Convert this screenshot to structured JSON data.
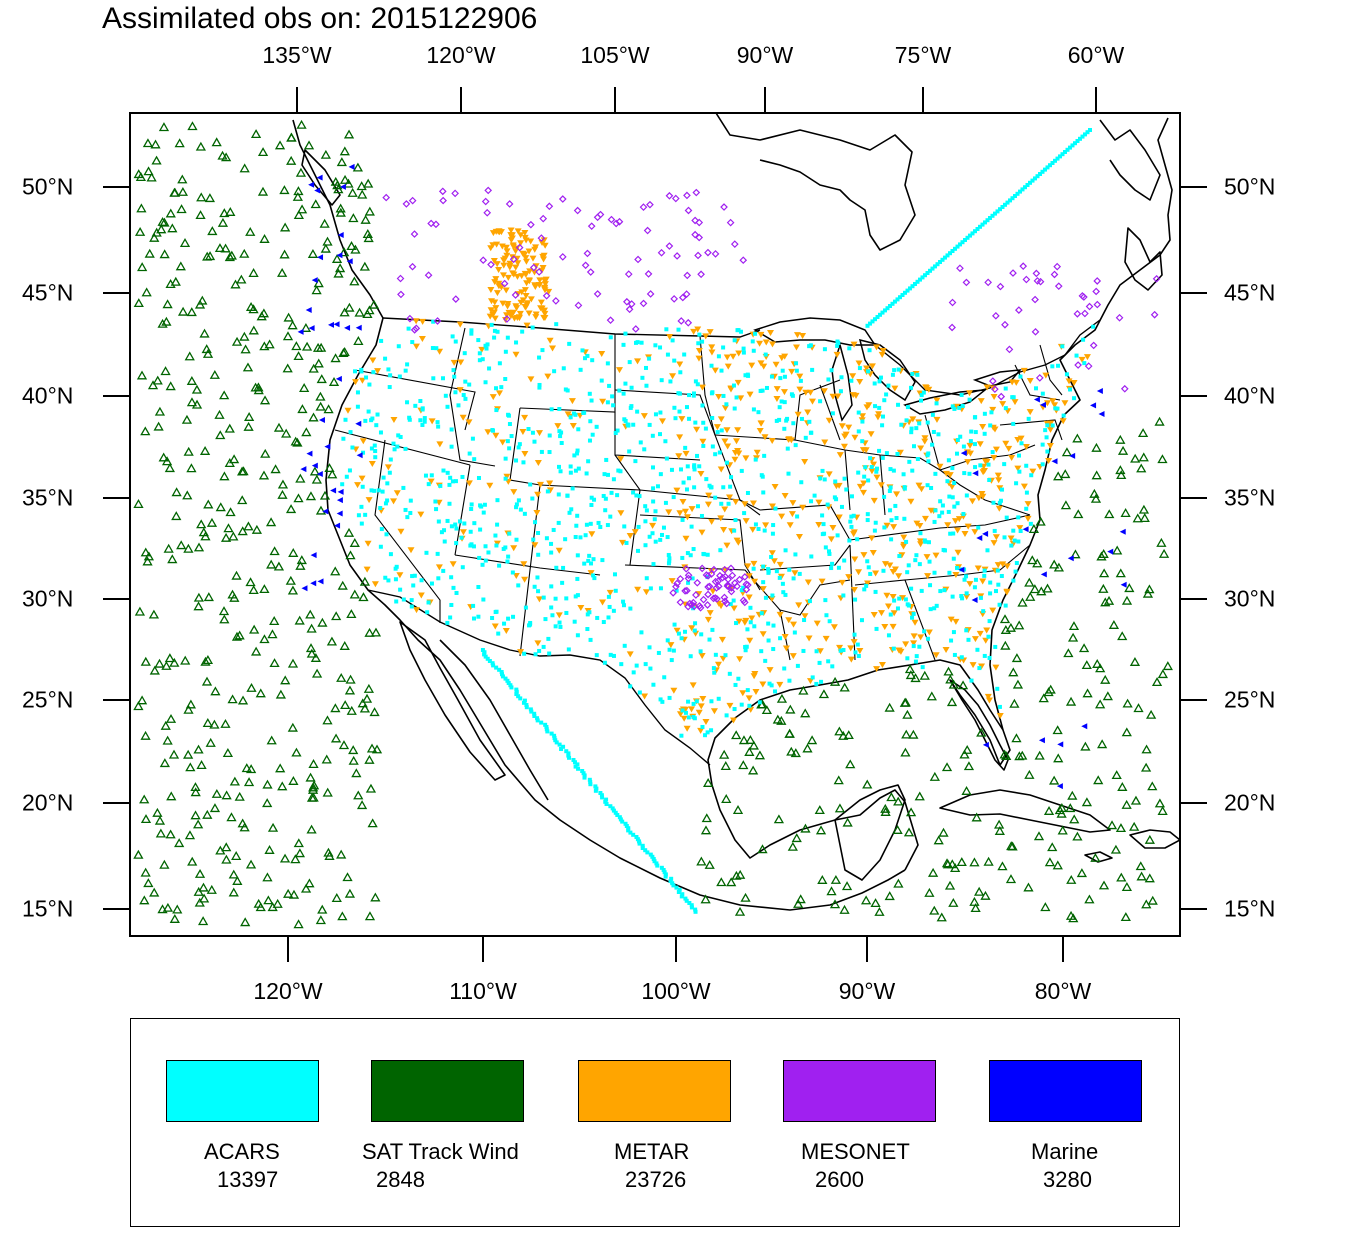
{
  "title": "Assimilated obs on: 2015122906",
  "axes": {
    "top_lon_labels": [
      "135°W",
      "120°W",
      "105°W",
      "90°W",
      "75°W",
      "60°W"
    ],
    "bottom_lon_labels": [
      "120°W",
      "110°W",
      "100°W",
      "90°W",
      "80°W"
    ],
    "lat_labels": [
      "50°N",
      "45°N",
      "40°N",
      "35°N",
      "30°N",
      "25°N",
      "20°N",
      "15°N"
    ]
  },
  "legend": [
    {
      "label": "ACARS",
      "count": "13397",
      "color": "#00ffff"
    },
    {
      "label": "SAT Track Wind",
      "count": "2848",
      "color": "#006400"
    },
    {
      "label": "METAR",
      "count": "23726",
      "color": "#ffa500"
    },
    {
      "label": "MESONET",
      "count": "2600",
      "color": "#a020f0"
    },
    {
      "label": "Marine",
      "count": "3280",
      "color": "#0000ff"
    }
  ],
  "map": {
    "projection": "lambert-conformal",
    "extent": "North America, 14°N–53°N, 140°W–55°W",
    "boundaries": [
      "coastlines",
      "country borders",
      "US state borders"
    ],
    "marker_shapes": {
      "ACARS": "filled square",
      "SAT Track Wind": "open triangle",
      "METAR": "filled downward triangle",
      "MESONET": "open diamond",
      "Marine": "filled left triangle"
    }
  }
}
